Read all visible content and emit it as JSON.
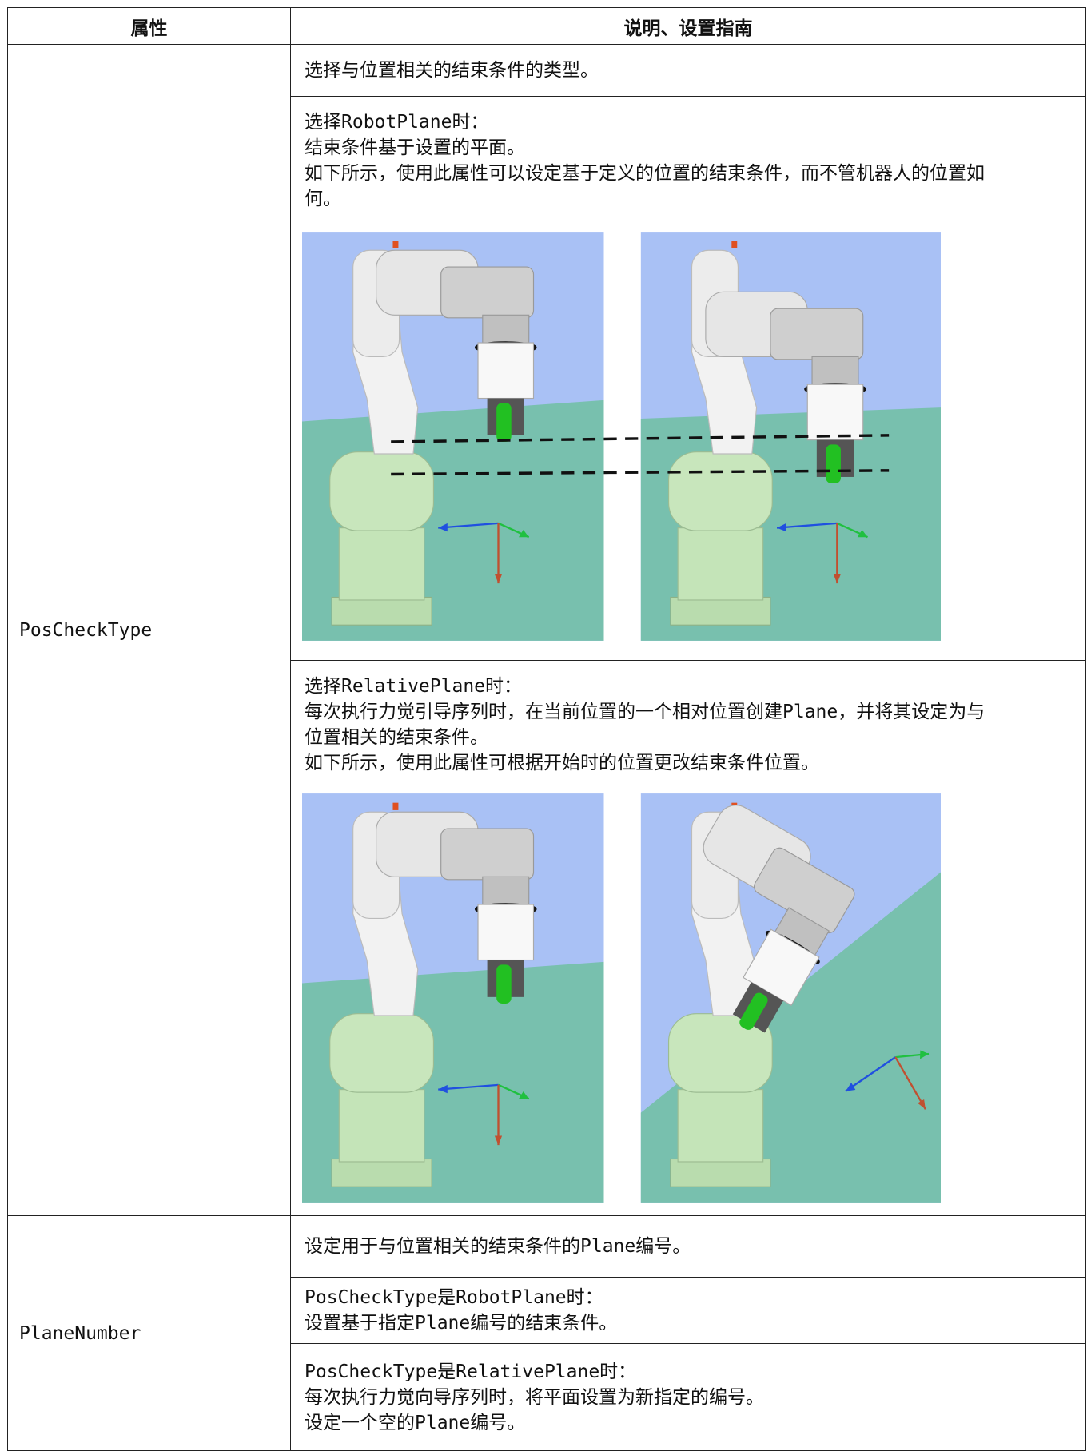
{
  "header": [
    "属性",
    "说明、设置指南"
  ],
  "rows": [
    {
      "property": "PosCheckType",
      "cells": [
        {
          "lines": [
            "选择与位置相关的结束条件的类型。"
          ]
        },
        {
          "lines": [
            "选择RobotPlane时：",
            "结束条件基于设置的平面。",
            "如下所示，使用此属性可以设定基于定义的位置的结束条件，而不管机器人的位置如",
            "何。"
          ]
        },
        {
          "lines": [
            "选择RelativePlane时：",
            "每次执行力觉引导序列时，在当前位置的一个相对位置创建Plane，并将其设定为与",
            "位置相关的结束条件。",
            "如下所示，使用此属性可根据开始时的位置更改结束条件位置。"
          ]
        }
      ]
    },
    {
      "property": "PlaneNumber",
      "cells": [
        {
          "lines": [
            "设定用于与位置相关的结束条件的Plane编号。"
          ]
        },
        {
          "lines": [
            "PosCheckType是RobotPlane时：",
            "设置基于指定Plane编号的结束条件。"
          ]
        },
        {
          "lines": [
            "PosCheckType是RelativePlane时：",
            "每次执行力觉向导序列时，将平面设置为新指定的编号。",
            "设定一个空的Plane编号。"
          ]
        }
      ]
    }
  ]
}
